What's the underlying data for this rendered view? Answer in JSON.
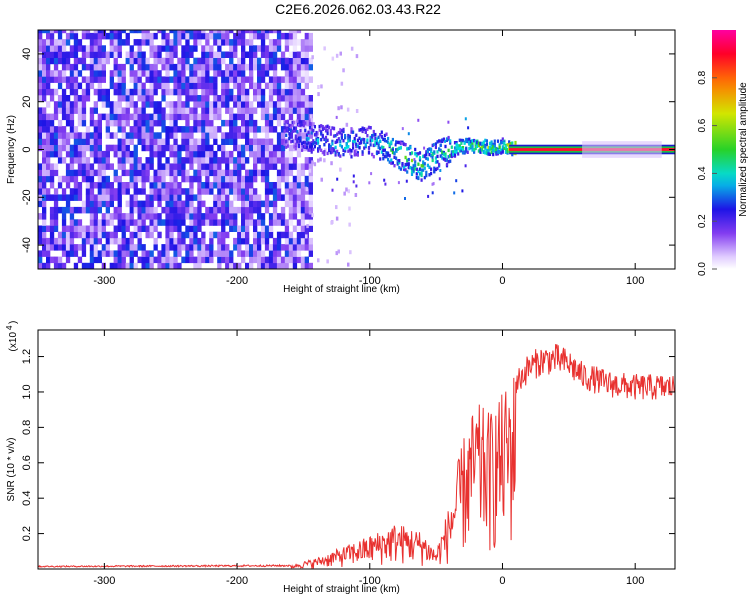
{
  "title": "C2E6.2026.062.03.43.R22",
  "chart_data": [
    {
      "type": "heatmap",
      "name": "spectrogram",
      "xlabel": "Height of straight line (km)",
      "ylabel": "Frequency (Hz)",
      "xlim": [
        -350,
        130
      ],
      "ylim": [
        -50,
        50
      ],
      "x_ticks": [
        -300,
        -200,
        -100,
        0,
        100
      ],
      "y_ticks": [
        -40,
        -20,
        0,
        20,
        40
      ],
      "colorbar": {
        "label": "Normalized spectral amplitude",
        "range": [
          0.0,
          1.0
        ],
        "ticks": [
          0.0,
          0.2,
          0.4,
          0.6,
          0.8
        ],
        "tick_labels": [
          "0.0",
          "0.2",
          "0.4",
          "0.6",
          "0.8"
        ]
      },
      "features": {
        "noise_region_x": [
          -350,
          -145
        ],
        "noise_level": [
          0.05,
          0.3
        ],
        "signal_trace": {
          "x": [
            -160,
            -140,
            -120,
            -100,
            -80,
            -60,
            -50,
            -40,
            -30,
            -20,
            -10,
            0,
            10,
            130
          ],
          "freq_hz": [
            6,
            4,
            2,
            3,
            -2,
            -8,
            -3,
            -1,
            1,
            1,
            0,
            1,
            0,
            0
          ],
          "amplitude": [
            0.3,
            0.35,
            0.4,
            0.35,
            0.5,
            0.55,
            0.45,
            0.5,
            0.5,
            0.55,
            0.6,
            0.55,
            0.9,
            0.95
          ]
        }
      }
    },
    {
      "type": "line",
      "name": "snr",
      "xlabel": "Height of straight line (km)",
      "ylabel": "SNR (10 * v/v)",
      "multiplier_label": "(x10",
      "multiplier_exp": "4",
      "xlim": [
        -350,
        130
      ],
      "ylim": [
        0,
        1.35
      ],
      "x_ticks": [
        -300,
        -200,
        -100,
        0,
        100
      ],
      "y_ticks": [
        0.2,
        0.4,
        0.6,
        0.8,
        1.0,
        1.2
      ],
      "y_tick_labels": [
        "0.2",
        "0.4",
        "0.6",
        "0.8",
        "1.0",
        "1.2"
      ],
      "series": [
        {
          "name": "SNR",
          "color": "#e8312f",
          "envelope_x": [
            -350,
            -160,
            -140,
            -120,
            -100,
            -80,
            -60,
            -50,
            -40,
            -30,
            -20,
            -10,
            0,
            10,
            20,
            30,
            40,
            50,
            60,
            80,
            100,
            130
          ],
          "envelope_y": [
            0.015,
            0.02,
            0.06,
            0.12,
            0.18,
            0.25,
            0.2,
            0.1,
            0.35,
            0.7,
            0.9,
            0.85,
            0.95,
            1.1,
            1.2,
            1.24,
            1.25,
            1.22,
            1.15,
            1.1,
            1.08,
            1.08
          ]
        }
      ]
    }
  ]
}
